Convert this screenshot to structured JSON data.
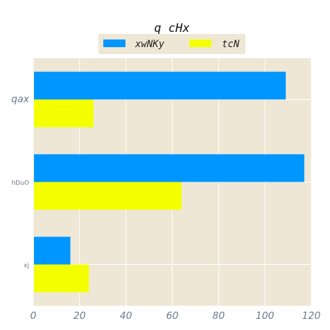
{
  "chart_data": {
    "type": "bar",
    "orientation": "horizontal",
    "title": "q cHx",
    "categories": [
      "qax",
      "hDuO",
      "xj"
    ],
    "series": [
      {
        "name": "xwNKy",
        "values": [
          109,
          117,
          16
        ],
        "color": "#0096ff"
      },
      {
        "name": "tcN",
        "values": [
          26,
          64,
          24
        ],
        "color": "#f4ff00"
      }
    ],
    "xlim": [
      0,
      120
    ],
    "xticks": [
      "0",
      "20",
      "40",
      "60",
      "80",
      "100",
      "120"
    ],
    "grid": true,
    "legend": "top-center",
    "background": "#efe7d5",
    "grid_color": "#ffffff"
  }
}
